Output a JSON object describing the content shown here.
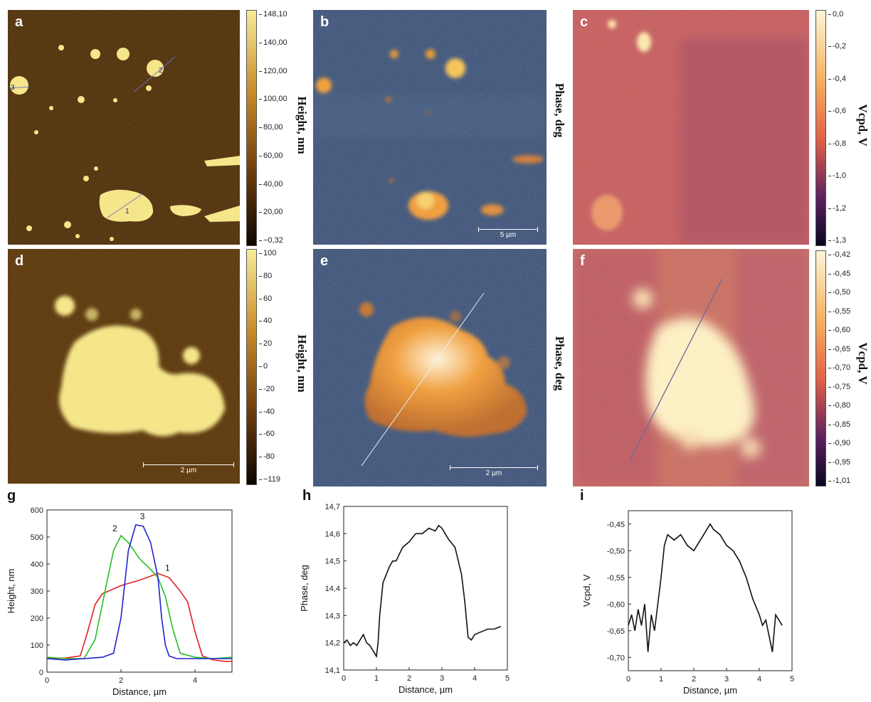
{
  "panels": {
    "a": {
      "label": "a",
      "line_labels": [
        "1",
        "2",
        "3"
      ]
    },
    "b": {
      "label": "b",
      "scale": "5 µm"
    },
    "c": {
      "label": "c"
    },
    "d": {
      "label": "d",
      "scale": "2 µm"
    },
    "e": {
      "label": "e",
      "scale": "2 µm"
    },
    "f": {
      "label": "f"
    }
  },
  "colorbars": {
    "height1": {
      "title": "Height, nm",
      "ticks": [
        "148,10",
        "140,00",
        "120,00",
        "100,00",
        "80,00",
        "60,00",
        "40,00",
        "20,00",
        "−0,32"
      ]
    },
    "phase1": {
      "title": "Phase, deg"
    },
    "vcpd1": {
      "title": "Vcpd, V",
      "ticks": [
        "0,0",
        "-0,2",
        "-0,4",
        "-0,6",
        "-0,8",
        "-1,0",
        "-1,2",
        "-1,3"
      ]
    },
    "height2": {
      "title": "Height, nm",
      "ticks": [
        "100",
        "80",
        "60",
        "40",
        "20",
        "0",
        "-20",
        "-40",
        "-60",
        "-80",
        "−119"
      ]
    },
    "phase2": {
      "title": "Phase, deg"
    },
    "vcpd2": {
      "title": "Vcpd, V",
      "ticks": [
        "-0,42",
        "-0,45",
        "-0,50",
        "-0,55",
        "-0,60",
        "-0,65",
        "-0,70",
        "-0,75",
        "-0,80",
        "-0,85",
        "-0,90",
        "-0,95",
        "-1,01"
      ]
    }
  },
  "colors": {
    "height_bright": "#f7ec9a",
    "height_dark": "#1a0c02",
    "phase_dark": "#1d2e52",
    "phase_bright": "#f0b040",
    "vcpd_bright": "#fbf0c0",
    "vcpd_mid": "#e8604a",
    "vcpd_dark": "#1a1030",
    "curve1": "#e02020",
    "curve2": "#20c020",
    "curve3": "#2020d0"
  },
  "chart_data": [
    {
      "type": "line",
      "panel": "g",
      "xlabel": "Distance, µm",
      "ylabel": "Height, nm",
      "xlim": [
        0,
        5
      ],
      "ylim": [
        0,
        600
      ],
      "xticks": [
        "0",
        "2",
        "4"
      ],
      "yticks": [
        "0",
        "100",
        "200",
        "300",
        "400",
        "500",
        "600"
      ],
      "series": [
        {
          "name": "1",
          "color": "#e02020",
          "x": [
            0,
            0.5,
            0.9,
            1.1,
            1.3,
            1.5,
            2.0,
            2.5,
            3.0,
            3.3,
            3.6,
            3.8,
            4.0,
            4.2,
            4.5,
            4.8,
            5.0
          ],
          "y": [
            50,
            52,
            60,
            150,
            250,
            290,
            320,
            340,
            365,
            350,
            300,
            260,
            150,
            60,
            45,
            40,
            40
          ]
        },
        {
          "name": "2",
          "color": "#20c020",
          "x": [
            0,
            0.5,
            1.0,
            1.3,
            1.6,
            1.8,
            2.0,
            2.2,
            2.5,
            2.8,
            3.0,
            3.2,
            3.4,
            3.6,
            4.0,
            4.5,
            5.0
          ],
          "y": [
            55,
            50,
            50,
            120,
            320,
            450,
            505,
            480,
            420,
            380,
            350,
            280,
            160,
            70,
            55,
            50,
            55
          ]
        },
        {
          "name": "3",
          "color": "#2020d0",
          "x": [
            0,
            0.5,
            1.0,
            1.5,
            1.8,
            2.0,
            2.2,
            2.4,
            2.6,
            2.8,
            3.0,
            3.1,
            3.2,
            3.3,
            3.5,
            4.0,
            4.5,
            5.0
          ],
          "y": [
            50,
            45,
            50,
            55,
            70,
            200,
            450,
            545,
            540,
            480,
            350,
            200,
            100,
            60,
            50,
            50,
            50,
            50
          ]
        }
      ]
    },
    {
      "type": "line",
      "panel": "h",
      "xlabel": "Distance, µm",
      "ylabel": "Phase, deg",
      "xlim": [
        0,
        5
      ],
      "ylim": [
        14.1,
        14.7
      ],
      "xticks": [
        "0",
        "1",
        "2",
        "3",
        "4",
        "5"
      ],
      "yticks": [
        "14,1",
        "14,2",
        "14,3",
        "14,4",
        "14,5",
        "14,6",
        "14,7"
      ],
      "series": [
        {
          "x": [
            0,
            0.1,
            0.2,
            0.3,
            0.4,
            0.5,
            0.6,
            0.7,
            0.8,
            0.9,
            1.0,
            1.05,
            1.1,
            1.2,
            1.3,
            1.4,
            1.5,
            1.6,
            1.8,
            2.0,
            2.2,
            2.4,
            2.6,
            2.8,
            2.9,
            3.0,
            3.2,
            3.4,
            3.6,
            3.7,
            3.8,
            3.9,
            4.0,
            4.2,
            4.4,
            4.6,
            4.8
          ],
          "y": [
            14.2,
            14.21,
            14.19,
            14.2,
            14.19,
            14.21,
            14.23,
            14.2,
            14.19,
            14.17,
            14.15,
            14.2,
            14.3,
            14.42,
            14.45,
            14.48,
            14.5,
            14.5,
            14.55,
            14.57,
            14.6,
            14.6,
            14.62,
            14.61,
            14.63,
            14.62,
            14.58,
            14.55,
            14.45,
            14.35,
            14.22,
            14.21,
            14.23,
            14.24,
            14.25,
            14.25,
            14.26
          ]
        }
      ]
    },
    {
      "type": "line",
      "panel": "i",
      "xlabel": "Distance, µm",
      "ylabel": "Vcpd, V",
      "xlim": [
        0,
        5
      ],
      "ylim": [
        -0.725,
        -0.425
      ],
      "xticks": [
        "0",
        "1",
        "2",
        "3",
        "4",
        "5"
      ],
      "yticks": [
        "-0,45",
        "-0,50",
        "-0,55",
        "-0,60",
        "-0,65",
        "-0,70"
      ],
      "series": [
        {
          "x": [
            0,
            0.1,
            0.2,
            0.3,
            0.4,
            0.5,
            0.6,
            0.7,
            0.8,
            0.9,
            1.0,
            1.1,
            1.2,
            1.4,
            1.6,
            1.8,
            2.0,
            2.2,
            2.4,
            2.5,
            2.6,
            2.8,
            3.0,
            3.2,
            3.4,
            3.6,
            3.8,
            4.0,
            4.1,
            4.2,
            4.3,
            4.4,
            4.5,
            4.6,
            4.7
          ],
          "y": [
            -0.64,
            -0.62,
            -0.65,
            -0.61,
            -0.64,
            -0.6,
            -0.69,
            -0.62,
            -0.65,
            -0.6,
            -0.55,
            -0.49,
            -0.47,
            -0.48,
            -0.47,
            -0.49,
            -0.5,
            -0.48,
            -0.46,
            -0.45,
            -0.46,
            -0.47,
            -0.49,
            -0.5,
            -0.52,
            -0.55,
            -0.59,
            -0.62,
            -0.64,
            -0.63,
            -0.66,
            -0.69,
            -0.62,
            -0.63,
            -0.64
          ]
        }
      ]
    }
  ]
}
